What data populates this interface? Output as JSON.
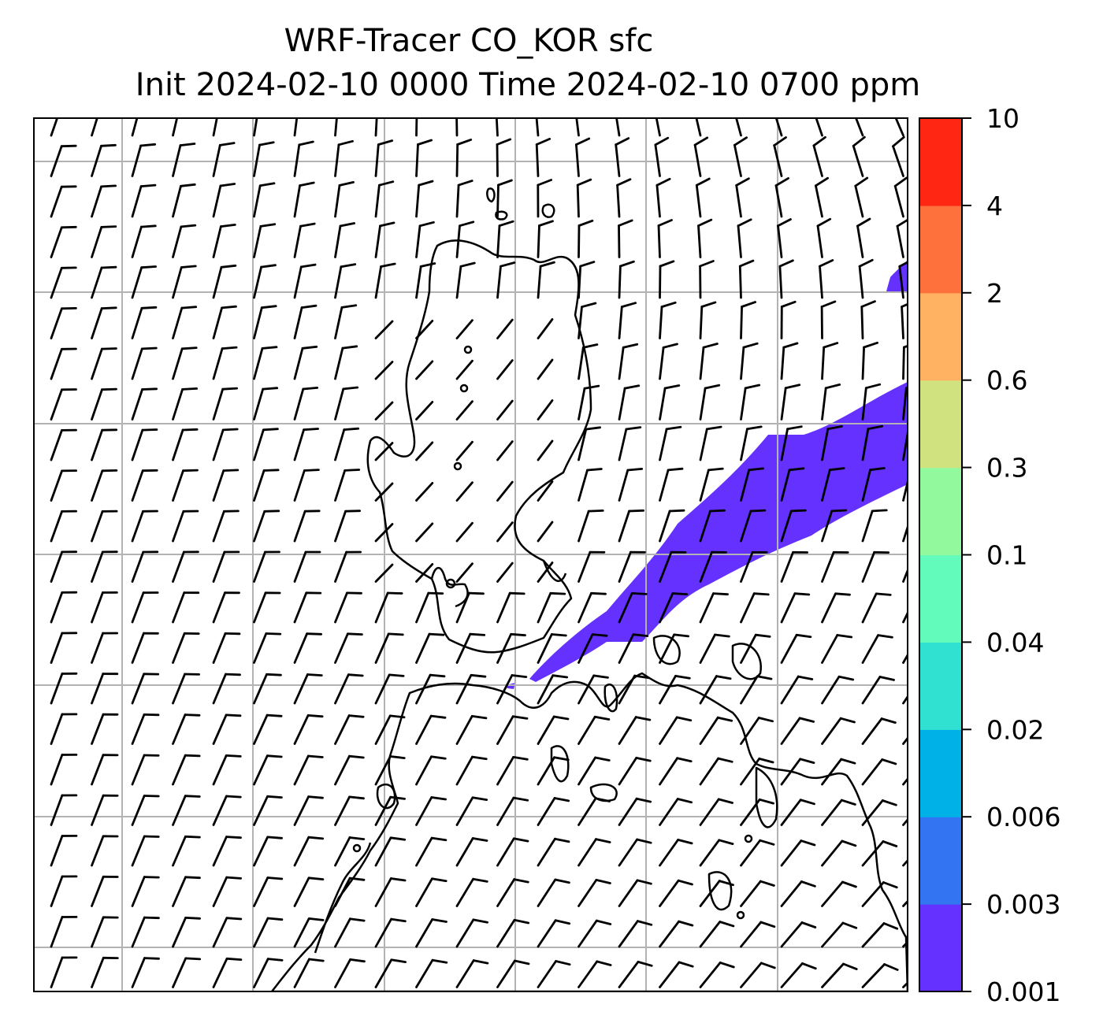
{
  "title": {
    "line1": "WRF-Tracer CO_KOR sfc",
    "line2": "Init 2024-02-10 0000 Time 2024-02-10 0700 ppm"
  },
  "colorbar": {
    "levels": [
      "0.001",
      "0.003",
      "0.006",
      "0.02",
      "0.04",
      "0.1",
      "0.3",
      "0.6",
      "2",
      "4",
      "10"
    ],
    "colors": [
      "#6431ff",
      "#3374f3",
      "#00b1e8",
      "#30e0d1",
      "#63fbbc",
      "#92f99d",
      "#d0e27f",
      "#feb262",
      "#ff713c",
      "#ff2614"
    ]
  },
  "map": {
    "field": "CO_KOR",
    "plume_color": "#6431ff",
    "barb_color": "#000000",
    "coastline_color": "#000000",
    "grid_color": "#b3b3b3",
    "gridlines": true
  }
}
